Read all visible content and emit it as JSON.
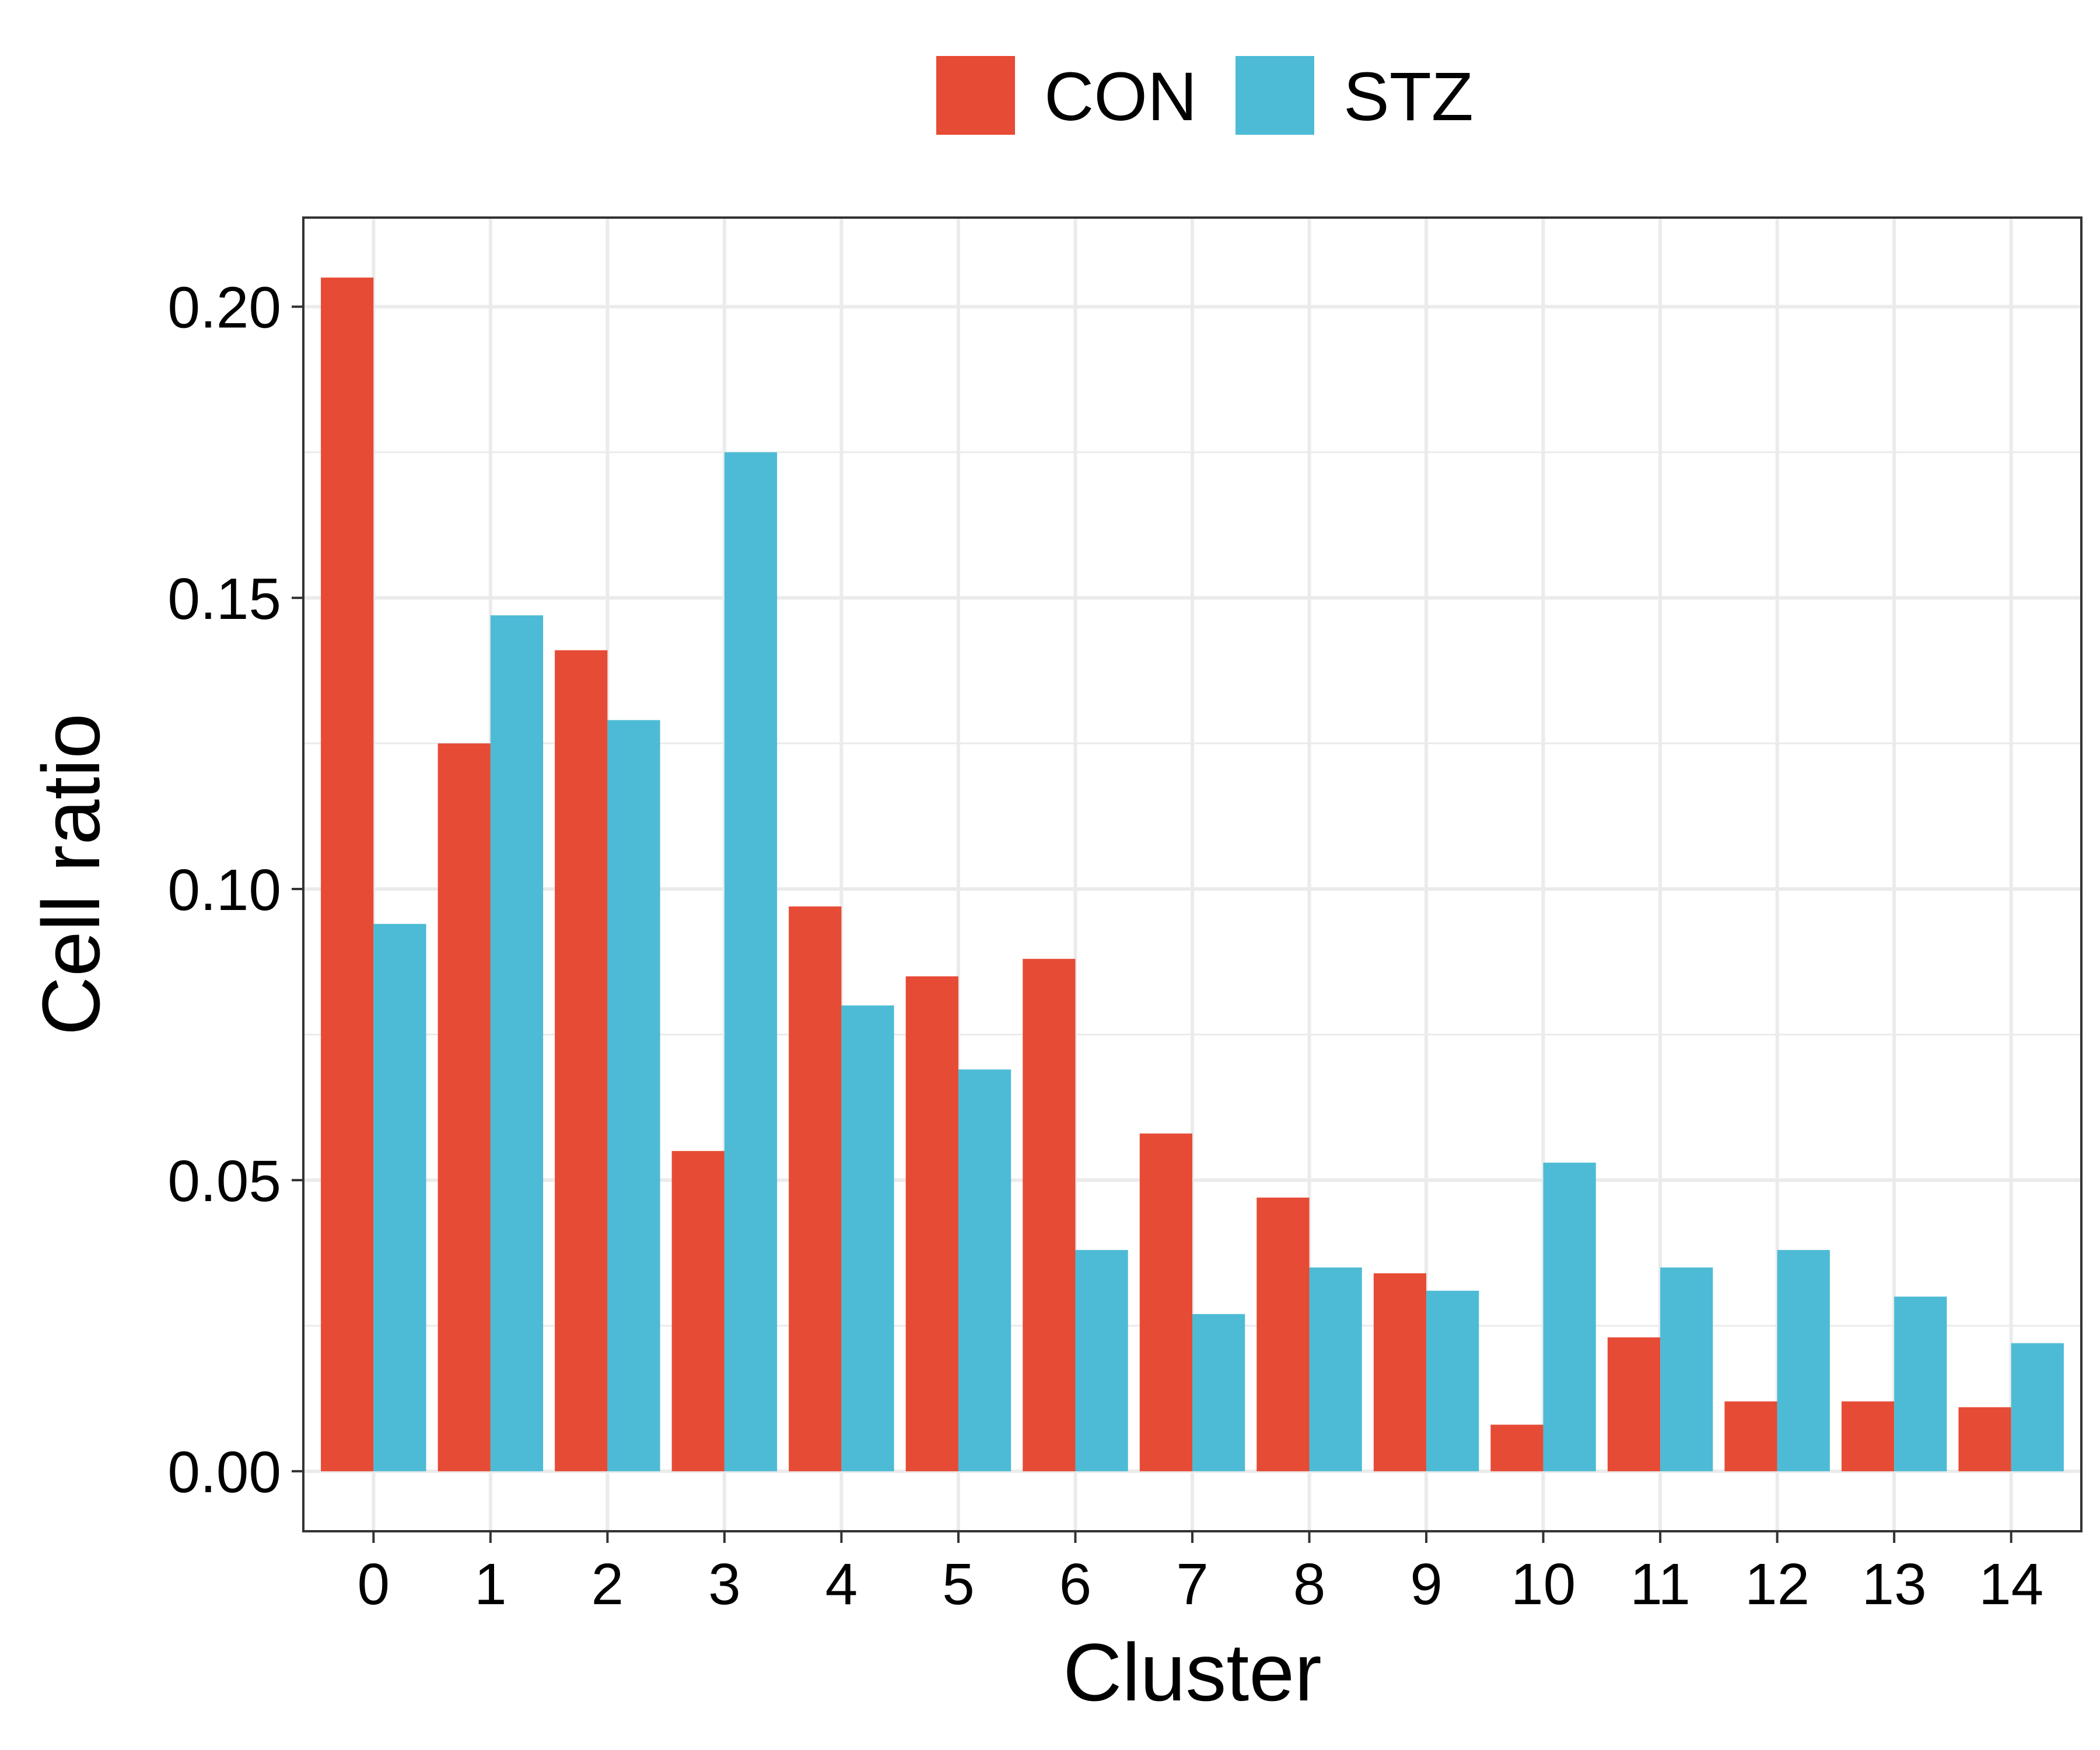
{
  "chart_data": {
    "type": "bar",
    "xlabel": "Cluster",
    "ylabel": "Cell ratio",
    "categories": [
      "0",
      "1",
      "2",
      "3",
      "4",
      "5",
      "6",
      "7",
      "8",
      "9",
      "10",
      "11",
      "12",
      "13",
      "14"
    ],
    "series": [
      {
        "name": "CON",
        "color": "#E64B35",
        "values": [
          0.205,
          0.125,
          0.141,
          0.055,
          0.097,
          0.085,
          0.088,
          0.058,
          0.047,
          0.034,
          0.008,
          0.023,
          0.012,
          0.012,
          0.011
        ]
      },
      {
        "name": "STZ",
        "color": "#4DBBD5",
        "values": [
          0.094,
          0.147,
          0.129,
          0.175,
          0.08,
          0.069,
          0.038,
          0.027,
          0.035,
          0.031,
          0.053,
          0.035,
          0.038,
          0.03,
          0.022
        ]
      }
    ],
    "yticks": [
      "0.00",
      "0.05",
      "0.10",
      "0.15",
      "0.20"
    ],
    "ylim": [
      -0.0103,
      0.2153
    ],
    "grid": true,
    "legend_position": "top"
  }
}
